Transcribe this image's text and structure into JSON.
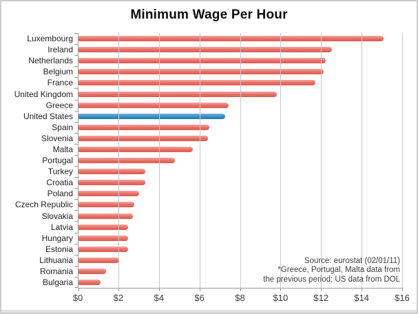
{
  "title": "Minimum Wage Per Hour",
  "chart_data": {
    "type": "bar",
    "orientation": "horizontal",
    "title": "Minimum Wage Per Hour",
    "categories": [
      "Luxembourg",
      "Ireland",
      "Netherlands",
      "Belgium",
      "France",
      "United Kingdom",
      "Greece",
      "United States",
      "Spain",
      "Slovenia",
      "Malta",
      "Portugal",
      "Turkey",
      "Croatia",
      "Poland",
      "Czech Republic",
      "Slovakia",
      "Latvia",
      "Hungary",
      "Estonia",
      "Lithuania",
      "Romania",
      "Bulgaria"
    ],
    "values": [
      15.05,
      12.5,
      12.2,
      12.1,
      11.7,
      9.8,
      7.4,
      7.25,
      6.45,
      6.4,
      5.65,
      4.75,
      3.3,
      3.3,
      3.0,
      2.75,
      2.7,
      2.45,
      2.45,
      2.45,
      2.0,
      1.35,
      1.1
    ],
    "highlight_category": "United States",
    "x_tick_labels": [
      "$0",
      "$2",
      "$4",
      "$6",
      "$8",
      "$10",
      "$12",
      "$14",
      "$16"
    ],
    "xlim": [
      0,
      16
    ],
    "grid": "vertical",
    "colors": {
      "bar": "#e8736a",
      "highlight_bar": "#3790c2",
      "gridline": "#c8c8c8",
      "axis_line": "#9a9a9a",
      "tick_label": "#3b3b3b",
      "category_label": "#212121"
    }
  },
  "annotation": {
    "lines": [
      "Source: eurostat (02/01/11)",
      "*Greece, Portugal, Malta data from",
      "the previous period; US data from DOL"
    ]
  }
}
